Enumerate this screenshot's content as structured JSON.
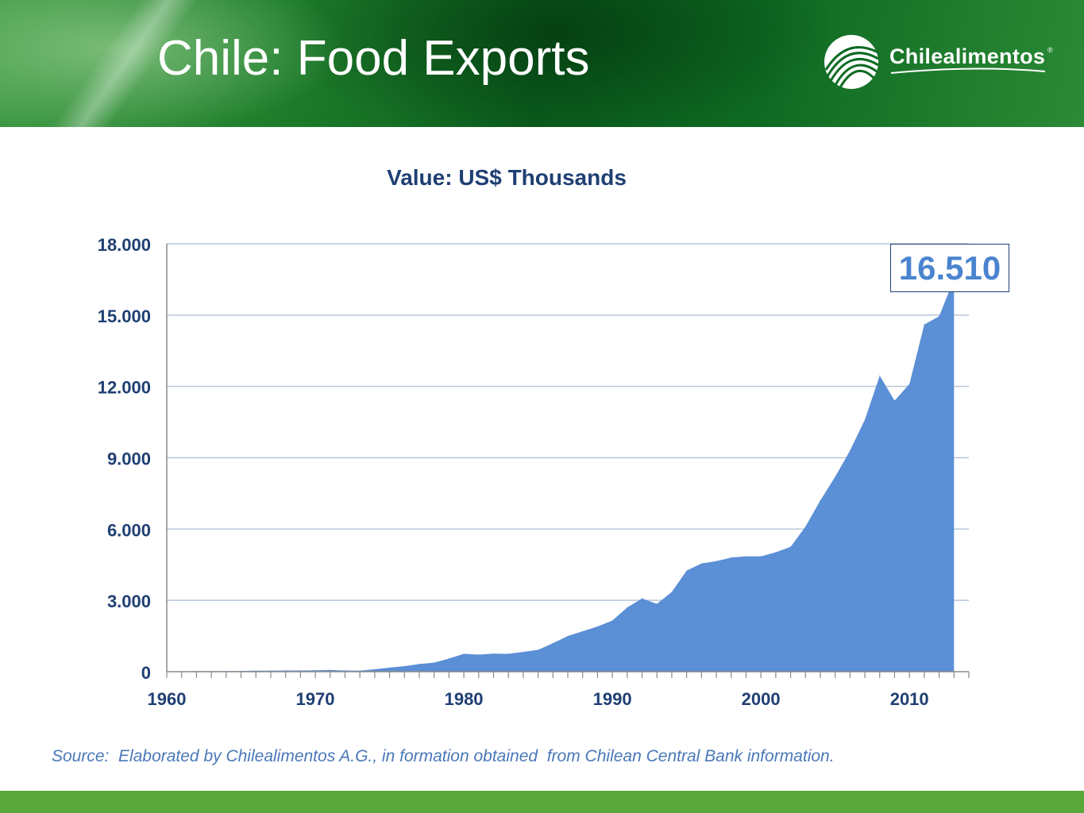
{
  "header": {
    "title": "Chile: Food Exports",
    "logo": {
      "name": "Chilealimentos",
      "mark": "®",
      "icon": "chilealimentos-logo-icon"
    },
    "colors": {
      "band": "#0e6a22",
      "text": "#ffffff"
    }
  },
  "chart_title": "Value: US$ Thousands",
  "annotation": "16.510",
  "source": "Source:  Elaborated by Chilealimentos A.G., in formation obtained  from Chilean Central Bank information.",
  "colors": {
    "area": "#5b8fd6",
    "grid": "#b9c6d8",
    "axis_text": "#1f3f73",
    "footer": "#5aa83b"
  },
  "chart_data": {
    "type": "area",
    "title": "Value: US$ Thousands",
    "xlabel": "",
    "ylabel": "",
    "xlim": [
      1960,
      2014
    ],
    "ylim": [
      0,
      18000
    ],
    "x_ticks": [
      "1960",
      "1970",
      "1980",
      "1990",
      "2000",
      "2010"
    ],
    "y_ticks": [
      "0",
      "3.000",
      "6.000",
      "9.000",
      "12.000",
      "15.000",
      "18.000"
    ],
    "grid": "horizontal",
    "legend": "none",
    "series": [
      {
        "x": [
          1960,
          1961,
          1962,
          1963,
          1964,
          1965,
          1966,
          1967,
          1968,
          1969,
          1970,
          1971,
          1972,
          1973,
          1974,
          1975,
          1976,
          1977,
          1978,
          1979,
          1980,
          1981,
          1982,
          1983,
          1984,
          1985,
          1986,
          1987,
          1988,
          1989,
          1990,
          1991,
          1992,
          1993,
          1994,
          1995,
          1996,
          1997,
          1998,
          1999,
          2000,
          2001,
          2002,
          2003,
          2004,
          2005,
          2006,
          2007,
          2008,
          2009,
          2010,
          2011,
          2012,
          2013
        ],
        "values": [
          15,
          15,
          20,
          20,
          25,
          30,
          40,
          40,
          50,
          50,
          60,
          70,
          50,
          40,
          100,
          170,
          230,
          320,
          380,
          550,
          750,
          720,
          760,
          750,
          830,
          920,
          1200,
          1500,
          1700,
          1900,
          2150,
          2700,
          3080,
          2850,
          3350,
          4250,
          4550,
          4650,
          4800,
          4850,
          4850,
          5020,
          5250,
          6100,
          7200,
          8200,
          9300,
          10600,
          12450,
          11400,
          12100,
          14600,
          14950,
          16510
        ]
      }
    ]
  }
}
